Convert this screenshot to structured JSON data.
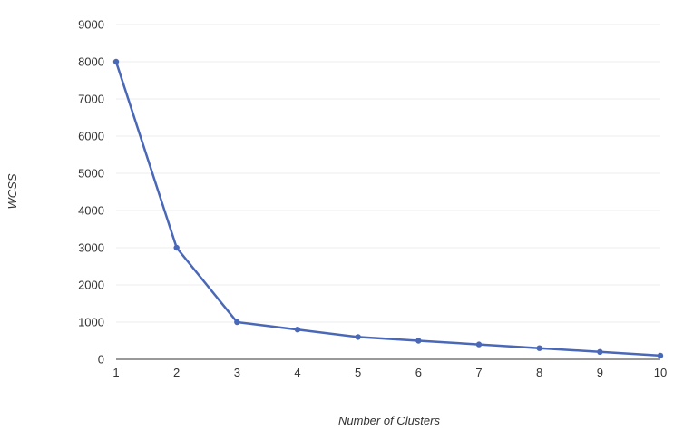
{
  "chart_data": {
    "type": "line",
    "title": "",
    "xlabel": "Number of Clusters",
    "ylabel": "WCSS",
    "x": [
      1,
      2,
      3,
      4,
      5,
      6,
      7,
      8,
      9,
      10
    ],
    "series": [
      {
        "values": [
          8000,
          3000,
          1000,
          800,
          600,
          500,
          400,
          300,
          200,
          100
        ]
      }
    ],
    "xlim": [
      1,
      10
    ],
    "ylim": [
      0,
      9000
    ],
    "yticks": [
      0,
      1000,
      2000,
      3000,
      4000,
      5000,
      6000,
      7000,
      8000,
      9000
    ],
    "xticks": [
      1,
      2,
      3,
      4,
      5,
      6,
      7,
      8,
      9,
      10
    ],
    "grid": "horizontal",
    "legend": "none",
    "line_color": "#4a68b8",
    "grid_color": "#ececec",
    "axis_color": "#333333"
  }
}
